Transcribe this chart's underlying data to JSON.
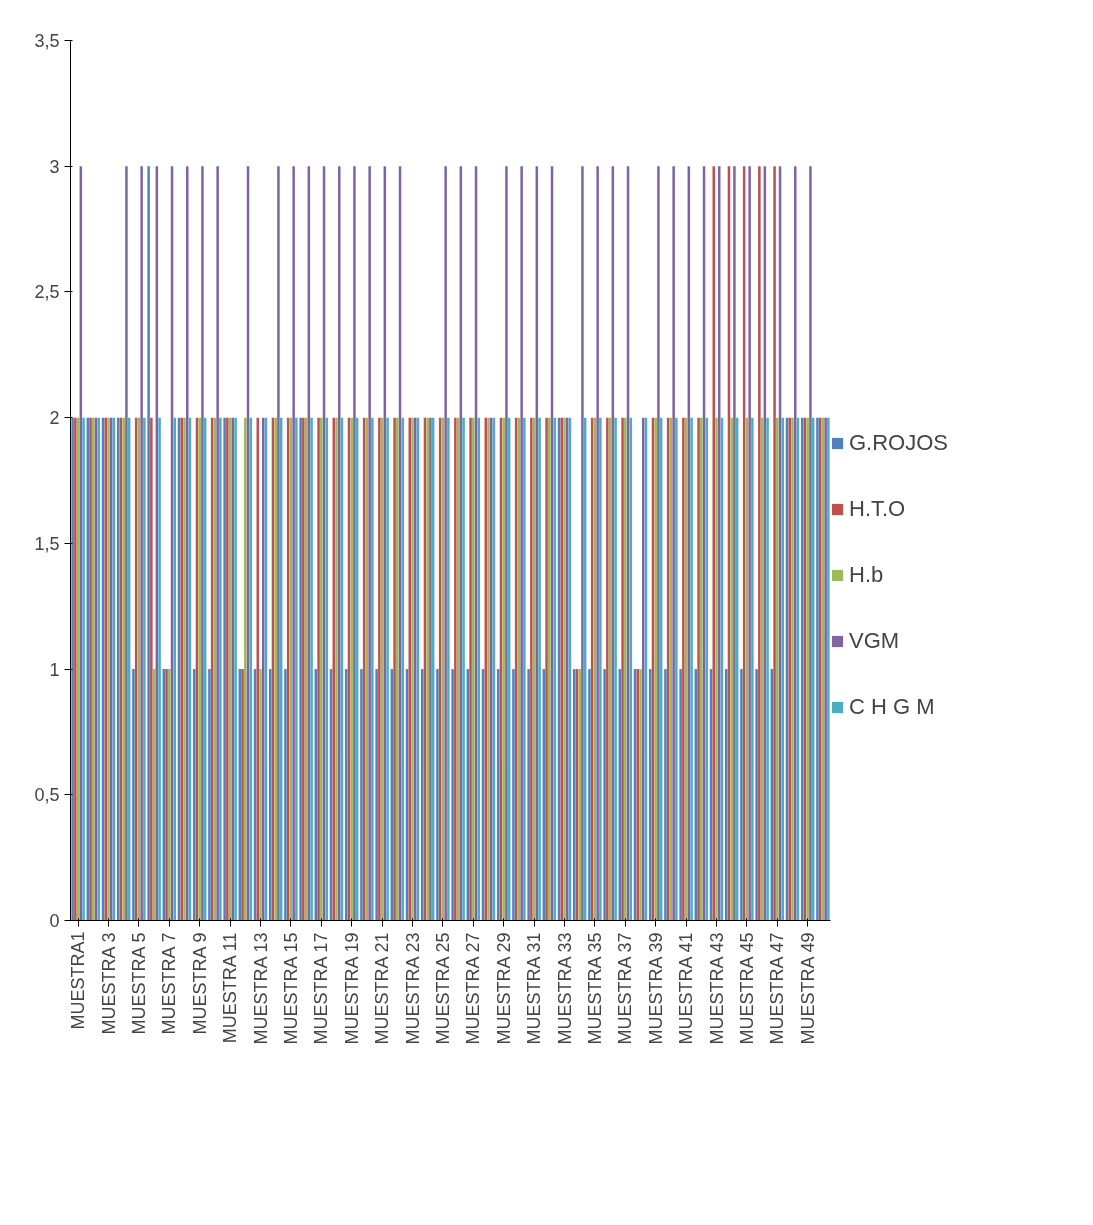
{
  "chart_data": {
    "type": "bar",
    "categories": [
      "MUESTRA1",
      null,
      "MUESTRA 3",
      null,
      "MUESTRA 5",
      null,
      "MUESTRA 7",
      null,
      "MUESTRA 9",
      null,
      "MUESTRA 11",
      null,
      "MUESTRA 13",
      null,
      "MUESTRA 15",
      null,
      "MUESTRA 17",
      null,
      "MUESTRA 19",
      null,
      "MUESTRA 21",
      null,
      "MUESTRA 23",
      null,
      "MUESTRA 25",
      null,
      "MUESTRA 27",
      null,
      "MUESTRA 29",
      null,
      "MUESTRA 31",
      null,
      "MUESTRA 33",
      null,
      "MUESTRA 35",
      null,
      "MUESTRA 37",
      null,
      "MUESTRA 39",
      null,
      "MUESTRA 41",
      null,
      "MUESTRA 43",
      null,
      "MUESTRA 45",
      null,
      "MUESTRA 47",
      null,
      "MUESTRA 49",
      null
    ],
    "series": [
      {
        "name": "G.ROJOS",
        "color": "#4f81bd",
        "values": [
          2,
          2,
          2,
          2,
          1,
          3,
          1,
          2,
          1,
          1,
          2,
          1,
          1,
          1,
          1,
          2,
          1,
          1,
          1,
          1,
          1,
          1,
          1,
          1,
          1,
          1,
          1,
          1,
          1,
          1,
          1,
          1,
          2,
          1,
          1,
          1,
          1,
          1,
          1,
          1,
          1,
          1,
          1,
          1,
          1,
          1,
          1,
          2,
          2,
          2
        ]
      },
      {
        "name": "H.T.O",
        "color": "#c0504d",
        "values": [
          2,
          2,
          2,
          2,
          2,
          2,
          1,
          2,
          2,
          2,
          2,
          1,
          2,
          2,
          2,
          2,
          2,
          2,
          2,
          2,
          2,
          2,
          2,
          2,
          2,
          2,
          2,
          2,
          2,
          2,
          2,
          2,
          2,
          1,
          2,
          2,
          2,
          1,
          2,
          2,
          2,
          2,
          3,
          3,
          3,
          3,
          3,
          2,
          2,
          2
        ]
      },
      {
        "name": "H.b",
        "color": "#9bbb59",
        "values": [
          2,
          2,
          2,
          2,
          2,
          1,
          1,
          2,
          2,
          2,
          2,
          2,
          1,
          2,
          2,
          2,
          2,
          2,
          2,
          2,
          2,
          2,
          2,
          2,
          2,
          2,
          2,
          2,
          2,
          2,
          2,
          2,
          2,
          1,
          2,
          2,
          2,
          1,
          2,
          2,
          2,
          2,
          2,
          2,
          2,
          2,
          2,
          2,
          2,
          2
        ]
      },
      {
        "name": "VGM",
        "color": "#8064a2",
        "values": [
          3,
          2,
          2,
          3,
          3,
          3,
          3,
          3,
          3,
          3,
          2,
          3,
          2,
          3,
          3,
          3,
          3,
          3,
          3,
          3,
          3,
          3,
          2,
          2,
          3,
          3,
          3,
          2,
          3,
          3,
          3,
          3,
          2,
          3,
          3,
          3,
          3,
          2,
          3,
          3,
          3,
          3,
          3,
          3,
          3,
          3,
          3,
          3,
          3,
          2
        ]
      },
      {
        "name": "C H G M",
        "color": "#4bacc6",
        "values": [
          2,
          2,
          2,
          2,
          2,
          2,
          2,
          2,
          2,
          2,
          2,
          2,
          2,
          2,
          2,
          2,
          2,
          2,
          2,
          2,
          2,
          2,
          2,
          2,
          2,
          2,
          2,
          2,
          2,
          2,
          2,
          2,
          2,
          2,
          2,
          2,
          2,
          2,
          2,
          2,
          2,
          2,
          2,
          2,
          2,
          2,
          2,
          2,
          2,
          2
        ]
      }
    ],
    "ylim": [
      0,
      3.5
    ],
    "yticks": [
      0,
      {
        "value": 0.5,
        "label": "0,5"
      },
      1,
      {
        "value": 1.5,
        "label": "1,5"
      },
      2,
      {
        "value": 2.5,
        "label": "2,5"
      },
      3,
      {
        "value": 3.5,
        "label": "3,5"
      }
    ],
    "grid": false,
    "legend": "right"
  }
}
